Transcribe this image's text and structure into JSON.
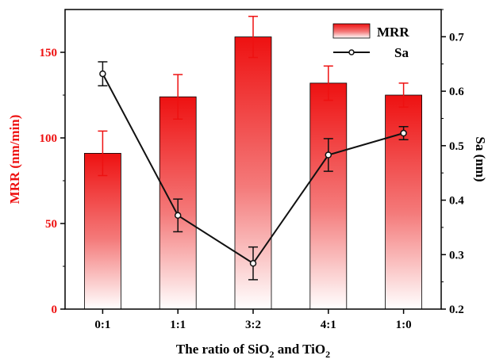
{
  "chart_data": {
    "type": "bar",
    "categories": [
      "0:1",
      "1:1",
      "3:2",
      "4:1",
      "1:0"
    ],
    "xlabel_parts": [
      "The ratio of SiO",
      "2",
      " and TiO",
      "2"
    ],
    "ylabel_left": "MRR (nm/min)",
    "ylabel_right": "Sa (nm)",
    "ylim_left": [
      0,
      175
    ],
    "yticks_left": [
      0,
      50,
      100,
      150
    ],
    "ylim_right": [
      0.2,
      0.75
    ],
    "yticks_right": [
      "0.2",
      "0.3",
      "0.4",
      "0.5",
      "0.6",
      "0.7"
    ],
    "grid": false,
    "legend_position": "top-right",
    "series": [
      {
        "name": "MRR",
        "kind": "bar",
        "axis": "left",
        "color": "#ee1111",
        "values": [
          91,
          124,
          159,
          132,
          125
        ],
        "errors": [
          13,
          13,
          12,
          10,
          7
        ]
      },
      {
        "name": "Sa",
        "kind": "line",
        "axis": "right",
        "color": "#111111",
        "values": [
          0.632,
          0.372,
          0.284,
          0.483,
          0.523
        ],
        "errors": [
          0.022,
          0.03,
          0.03,
          0.03,
          0.012
        ]
      }
    ]
  }
}
